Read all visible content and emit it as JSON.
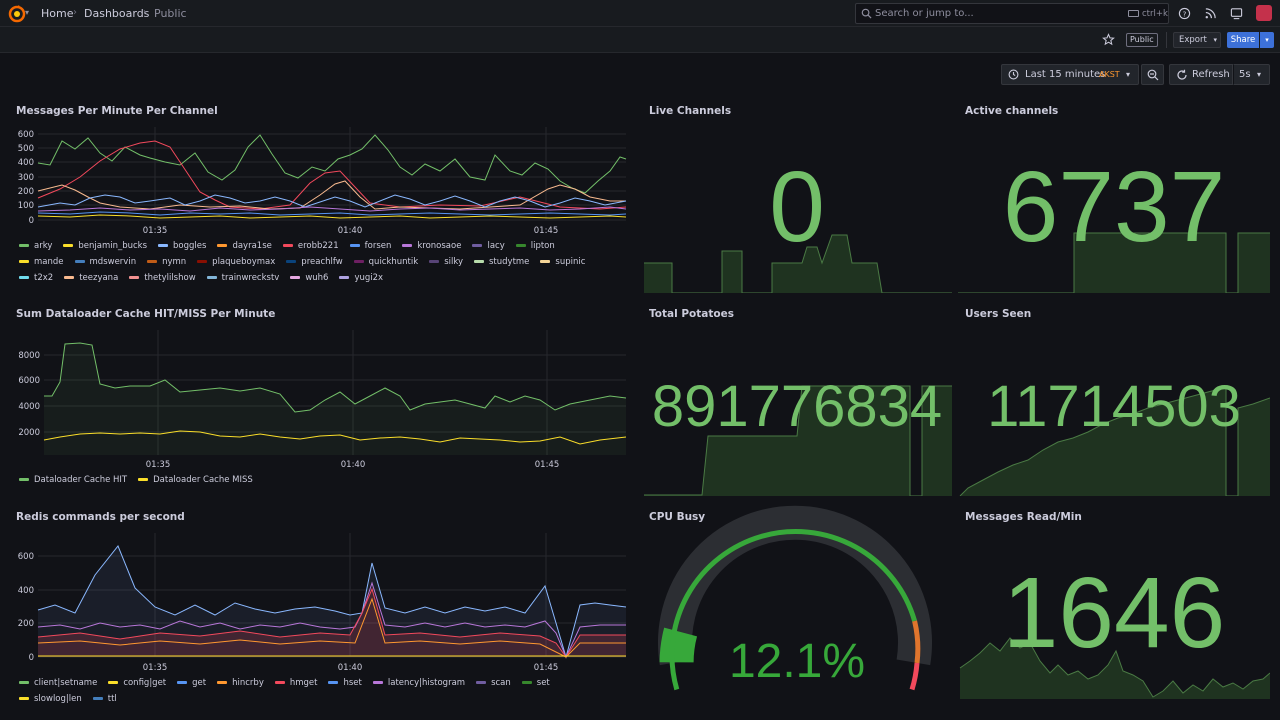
{
  "topbar": {
    "breadcrumbs": [
      "Home",
      "Dashboards",
      "Public"
    ],
    "search_placeholder": "Search or jump to...",
    "search_shortcut": "ctrl+k"
  },
  "toolbar": {
    "public_badge": "Public",
    "export_label": "Export",
    "share_label": "Share"
  },
  "time_controls": {
    "range_label": "Last 15 minutes",
    "timezone": "AKST",
    "refresh_label": "Refresh",
    "refresh_interval": "5s"
  },
  "colors": {
    "green": "#73bf69",
    "yellow": "#fade2a",
    "blue": "#5794f2",
    "orange": "#ff9830",
    "red": "#f2495c",
    "purple": "#b877d9"
  },
  "panels": {
    "messages_per_minute": {
      "title": "Messages Per Minute Per Channel",
      "x_ticks": [
        "01:35",
        "01:40",
        "01:45"
      ],
      "y_ticks": [
        "600",
        "500",
        "400",
        "300",
        "200",
        "100",
        "0"
      ],
      "legend": [
        {
          "name": "arky",
          "color": "#73bf69"
        },
        {
          "name": "benjamin_bucks",
          "color": "#fade2a"
        },
        {
          "name": "boggles",
          "color": "#8ab8ff"
        },
        {
          "name": "dayra1se",
          "color": "#ff9830"
        },
        {
          "name": "erobb221",
          "color": "#f2495c"
        },
        {
          "name": "forsen",
          "color": "#5794f2"
        },
        {
          "name": "kronosaoe",
          "color": "#b877d9"
        },
        {
          "name": "lacy",
          "color": "#705da0"
        },
        {
          "name": "lipton",
          "color": "#37872d"
        },
        {
          "name": "mande",
          "color": "#fade2a"
        },
        {
          "name": "mdswervin",
          "color": "#447ebc"
        },
        {
          "name": "nymn",
          "color": "#c15c17"
        },
        {
          "name": "plaqueboymax",
          "color": "#890f02"
        },
        {
          "name": "preachlfw",
          "color": "#0a437c"
        },
        {
          "name": "quickhuntik",
          "color": "#6d1f62"
        },
        {
          "name": "silky",
          "color": "#584477"
        },
        {
          "name": "studytme",
          "color": "#b7dbab"
        },
        {
          "name": "supinic",
          "color": "#f4d598"
        },
        {
          "name": "t2x2",
          "color": "#70dbed"
        },
        {
          "name": "teezyana",
          "color": "#f9ba8f"
        },
        {
          "name": "thetylilshow",
          "color": "#f29191"
        },
        {
          "name": "trainwreckstv",
          "color": "#82b5d8"
        },
        {
          "name": "wuh6",
          "color": "#e5a8e2"
        },
        {
          "name": "yugi2x",
          "color": "#aea2e0"
        }
      ]
    },
    "live_channels": {
      "title": "Live Channels",
      "value": "0"
    },
    "active_channels": {
      "title": "Active channels",
      "value": "6737"
    },
    "dataloader": {
      "title": "Sum Dataloader Cache HIT/MISS Per Minute",
      "x_ticks": [
        "01:35",
        "01:40",
        "01:45"
      ],
      "y_ticks": [
        "8000",
        "6000",
        "4000",
        "2000"
      ],
      "legend": [
        {
          "name": "Dataloader Cache HIT",
          "color": "#73bf69"
        },
        {
          "name": "Dataloader Cache MISS",
          "color": "#fade2a"
        }
      ]
    },
    "total_potatoes": {
      "title": "Total Potatoes",
      "value": "891776834"
    },
    "users_seen": {
      "title": "Users Seen",
      "value": "11714503"
    },
    "redis": {
      "title": "Redis commands per second",
      "x_ticks": [
        "01:35",
        "01:40",
        "01:45"
      ],
      "y_ticks": [
        "600",
        "400",
        "200",
        "0"
      ],
      "legend": [
        {
          "name": "client|setname",
          "color": "#73bf69"
        },
        {
          "name": "config|get",
          "color": "#fade2a"
        },
        {
          "name": "get",
          "color": "#5794f2"
        },
        {
          "name": "hincrby",
          "color": "#ff9830"
        },
        {
          "name": "hmget",
          "color": "#f2495c"
        },
        {
          "name": "hset",
          "color": "#5794f2"
        },
        {
          "name": "latency|histogram",
          "color": "#b877d9"
        },
        {
          "name": "scan",
          "color": "#705da0"
        },
        {
          "name": "set",
          "color": "#37872d"
        },
        {
          "name": "slowlog|len",
          "color": "#fade2a"
        },
        {
          "name": "ttl",
          "color": "#447ebc"
        }
      ]
    },
    "cpu_busy": {
      "title": "CPU Busy",
      "value": "12.1%",
      "percent": 12.1
    },
    "messages_read": {
      "title": "Messages Read/Min",
      "value": "1646"
    }
  }
}
